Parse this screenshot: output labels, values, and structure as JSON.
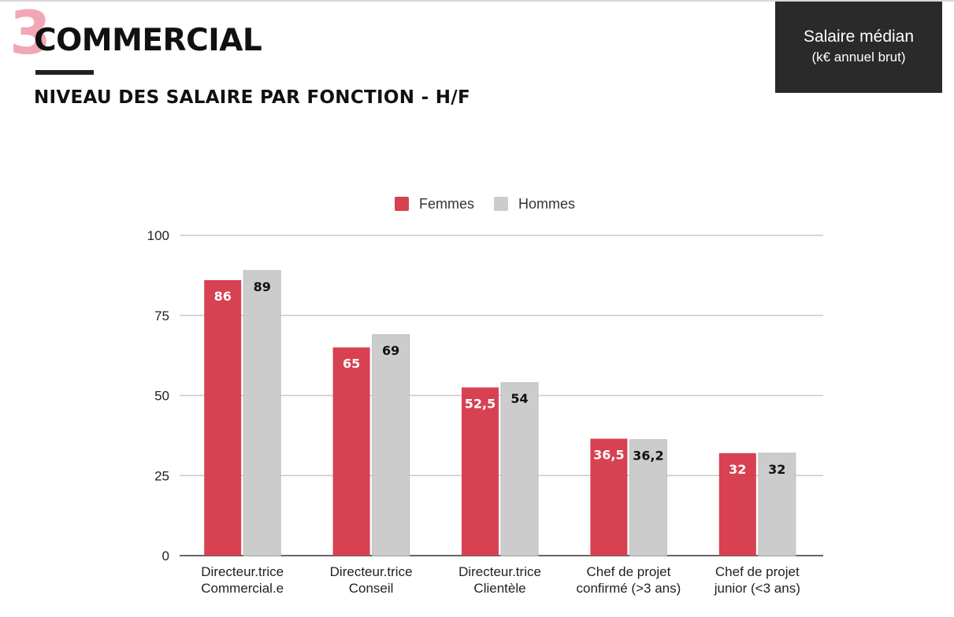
{
  "header": {
    "section_number": "3",
    "section_title": "COMMERCIAL",
    "subtitle": "NIVEAU DES SALAIRE PAR FONCTION - H/F"
  },
  "badge": {
    "line1": "Salaire médian",
    "line2": "(k€ annuel brut)"
  },
  "colors": {
    "femmes": "#d74152",
    "hommes": "#cccccc",
    "accent_pink": "#f2a7b5",
    "badge_bg": "#2a2a2a"
  },
  "chart_data": {
    "type": "bar",
    "categories": [
      [
        "Directeur.trice",
        "Commercial.e"
      ],
      [
        "Directeur.trice",
        "Conseil"
      ],
      [
        "Directeur.trice",
        "Clientèle"
      ],
      [
        "Chef de projet",
        "confirmé (>3 ans)"
      ],
      [
        "Chef de projet",
        "junior (<3 ans)"
      ]
    ],
    "series": [
      {
        "name": "Femmes",
        "values": [
          86,
          65,
          52.5,
          36.5,
          32
        ],
        "labels": [
          "86",
          "65",
          "52,5",
          "36,5",
          "32"
        ]
      },
      {
        "name": "Hommes",
        "values": [
          89,
          69,
          54,
          36.2,
          32
        ],
        "labels": [
          "89",
          "69",
          "54",
          "36,2",
          "32"
        ]
      }
    ],
    "yticks": [
      0,
      25,
      50,
      75,
      100
    ],
    "ylim": [
      0,
      100
    ],
    "grid": true,
    "legend_position": "top"
  }
}
